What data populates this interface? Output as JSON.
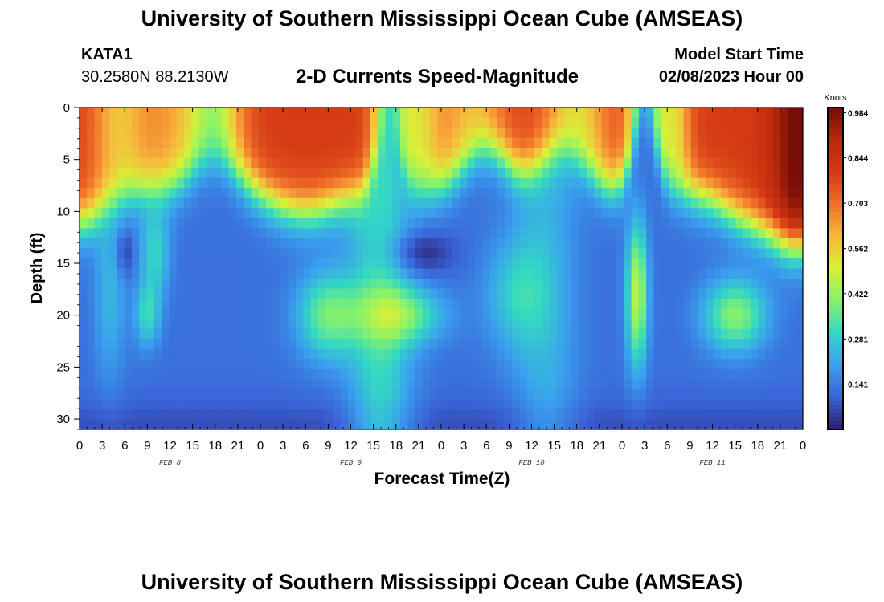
{
  "header": {
    "title": "University of Southern Mississippi Ocean Cube (AMSEAS)",
    "station": "KATA1",
    "coords": "30.2580N  88.2130W",
    "subtitle": "2-D Currents Speed-Magnitude",
    "model_start_label": "Model Start Time",
    "model_start_value": "02/08/2023 Hour 00"
  },
  "footer": {
    "title": "University of Southern Mississippi Ocean Cube (AMSEAS)"
  },
  "chart_data": {
    "type": "heatmap",
    "xlabel": "Forecast Time(Z)",
    "ylabel": "Depth (ft)",
    "x_ticks": [
      "0",
      "3",
      "6",
      "9",
      "12",
      "15",
      "18",
      "21",
      "0",
      "3",
      "6",
      "9",
      "12",
      "15",
      "18",
      "21",
      "0",
      "3",
      "6",
      "9",
      "12",
      "15",
      "18",
      "21",
      "0",
      "3",
      "6",
      "9",
      "12",
      "15",
      "18",
      "21",
      "0"
    ],
    "x_range_hours": [
      0,
      96
    ],
    "date_labels": [
      {
        "text": "FEB 8",
        "hour": 12
      },
      {
        "text": "FEB 9",
        "hour": 36
      },
      {
        "text": "FEB 10",
        "hour": 60
      },
      {
        "text": "FEB 11",
        "hour": 84
      }
    ],
    "y_ticks": [
      "0",
      "5",
      "10",
      "15",
      "20",
      "25",
      "30"
    ],
    "y_range_ft": [
      0,
      31
    ],
    "colorbar": {
      "units": "Knots",
      "ticks": [
        "0.984",
        "0.844",
        "0.703",
        "0.562",
        "0.422",
        "0.281",
        "0.141"
      ],
      "tick_values": [
        0.984,
        0.844,
        0.703,
        0.562,
        0.422,
        0.281,
        0.141
      ],
      "range": [
        0,
        1.0
      ],
      "colors": [
        "#2a1e6e",
        "#3a63d8",
        "#3aa0ee",
        "#33d8c4",
        "#86f26a",
        "#d8f038",
        "#f7b93c",
        "#f0702a",
        "#d53a14",
        "#b8290d",
        "#740c08"
      ]
    },
    "grid": false
  }
}
